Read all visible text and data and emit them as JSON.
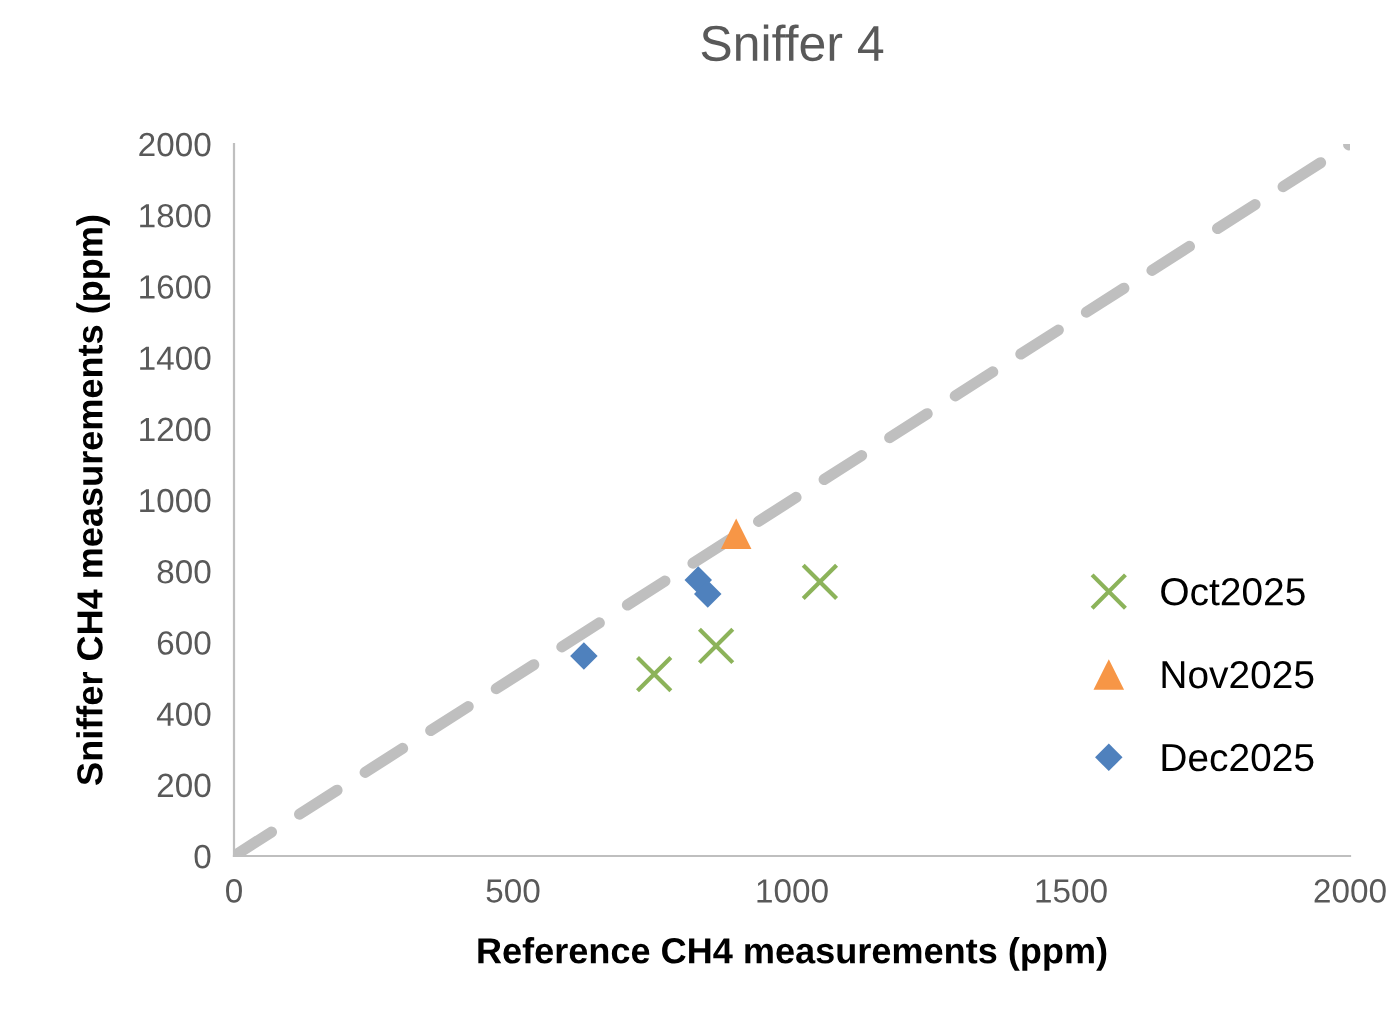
{
  "chart_data": {
    "type": "scatter",
    "title": "Sniffer 4",
    "xlabel": "Reference CH4 measurements (ppm)",
    "ylabel": "Sniffer CH4 measurements (ppm)",
    "series": [
      {
        "type": "line",
        "color": "#bfbfbf",
        "line_style": "dashed",
        "marker": "none",
        "x": [
          0,
          2000
        ],
        "values": [
          0,
          2000
        ]
      },
      {
        "name": "Oct2025",
        "color": "#8cb35a",
        "marker": "cross",
        "x": [
          753,
          864,
          1050
        ],
        "values": [
          511,
          590,
          770
        ]
      },
      {
        "name": "Nov2025",
        "color": "#f79646",
        "marker": "triangle",
        "x": [
          900
        ],
        "values": [
          905
        ]
      },
      {
        "name": "Dec2025",
        "color": "#4f81bd",
        "marker": "diamond",
        "x": [
          627,
          832,
          849
        ],
        "values": [
          562,
          775,
          736
        ]
      }
    ],
    "xlim": [
      0,
      2000
    ],
    "xticks": [
      0,
      500,
      1000,
      1500,
      2000
    ],
    "ylim": [
      0,
      2000
    ],
    "yticks": [
      0,
      200,
      400,
      600,
      800,
      1000,
      1200,
      1400,
      1600,
      1800,
      2000
    ],
    "grid": false,
    "legend": "right"
  }
}
